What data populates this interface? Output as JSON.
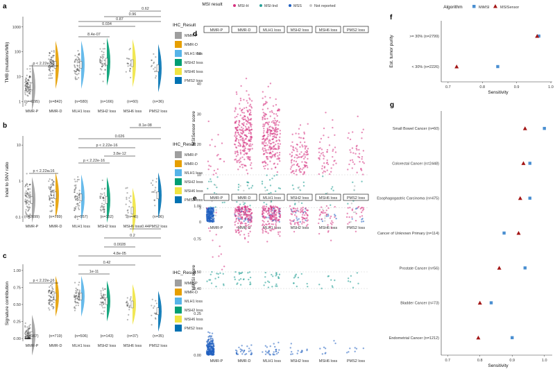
{
  "colors": {
    "mmrp": "#9e9e9e",
    "mmrd": "#e69f00",
    "mlh1": "#56b4e9",
    "msh2": "#009e73",
    "msh6": "#f0e442",
    "pms2": "#0072b2",
    "msih": "#d6317f",
    "msiind": "#2aa198",
    "mss": "#1f5fbf",
    "notrep": "#c8c8c8",
    "mimsi": "#4a8fd1",
    "msisensor": "#a31515"
  },
  "chart_data": [
    {
      "id": "a",
      "type": "raincloud",
      "ylabel": "TMB (mutations/Mb)",
      "scale": "log10",
      "ylim": [
        0.7,
        2000
      ],
      "yticks": [
        1,
        10,
        100,
        1000,
        10000
      ],
      "ytick_labels": [
        "1",
        "10",
        "100",
        "1000",
        "10000"
      ],
      "categories": [
        "MMR-P",
        "MMR-D",
        "MLH1 loss",
        "MSH2 loss",
        "MSH6 loss",
        "PMS2 loss"
      ],
      "counts": [
        "(n=4195)",
        "(n=842)",
        "(n=580)",
        "(n=166)",
        "(n=60)",
        "(n=36)"
      ],
      "medians": [
        4,
        30,
        30,
        40,
        35,
        22
      ],
      "pvalues": [
        {
          "from": 0,
          "to": 1,
          "label": "p < 2.22e-16"
        },
        {
          "from": 2,
          "to": 3,
          "label": "8.4e-07"
        },
        {
          "from": 2,
          "to": 4,
          "label": "0.034"
        },
        {
          "from": 2,
          "to": 5,
          "label": "0.87"
        },
        {
          "from": 3,
          "to": 5,
          "label": "0.96"
        },
        {
          "from": 4,
          "to": 5,
          "label": "0.62"
        }
      ],
      "legend_title": "IHC_Result",
      "legend": [
        "MMR-P",
        "MMR-D",
        "MLH1 loss",
        "MSH2 loss",
        "MSH6 loss",
        "PMS2 loss"
      ]
    },
    {
      "id": "b",
      "type": "raincloud",
      "ylabel": "Indel to SNV ratio",
      "scale": "log10",
      "ylim": [
        0.08,
        15
      ],
      "yticks": [
        0.1,
        1,
        10
      ],
      "ytick_labels": [
        "0.1",
        "1",
        "10"
      ],
      "categories": [
        "MMR-P",
        "MMR-D",
        "MLH1 loss",
        "MSH2 loss",
        "MSH6 loss",
        "PMS2 loss"
      ],
      "counts": [
        "(n=2699)",
        "(n=789)",
        "(n=557)",
        "(n=152)",
        "(n=46)",
        "(n=36)"
      ],
      "medians": [
        0.3,
        0.4,
        0.35,
        0.3,
        0.15,
        0.4
      ],
      "pvalues": [
        {
          "from": 0,
          "to": 1,
          "label": "p < 2.22e-16"
        },
        {
          "from": 2,
          "to": 3,
          "label": "p < 2.22e-16"
        },
        {
          "from": 3,
          "to": 4,
          "label": "3.8e-12"
        },
        {
          "from": 2,
          "to": 4,
          "label": "p < 2.22e-16"
        },
        {
          "from": 2,
          "to": 5,
          "label": "0.026"
        },
        {
          "from": 4,
          "to": 5,
          "label": "8.1e-08"
        }
      ],
      "legend_title": "IHC_Result",
      "legend": [
        "MMR-P",
        "MMR-D",
        "MLH1 loss",
        "MSH2 loss",
        "MSH6 loss",
        "PMS2 loss"
      ]
    },
    {
      "id": "c",
      "type": "raincloud",
      "ylabel": "Signature contribution",
      "scale": "linear",
      "ylim": [
        -0.02,
        1.05
      ],
      "yticks": [
        0,
        0.25,
        0.5,
        0.75,
        1
      ],
      "ytick_labels": [
        "0.00",
        "0.25",
        "0.50",
        "0.75",
        "1.00"
      ],
      "categories": [
        "MMR-P",
        "MMR-D",
        "MLH1 loss",
        "MSH2 loss",
        "MSH6 loss",
        "PMS2 loss"
      ],
      "counts": [
        "(n=167)",
        "(n=719)",
        "(n=506)",
        "(n=143)",
        "(n=37)",
        "(n=35)"
      ],
      "medians": [
        0.05,
        0.62,
        0.62,
        0.55,
        0.5,
        0.4
      ],
      "pvalues": [
        {
          "from": 0,
          "to": 1,
          "label": "p < 2.22e-16"
        },
        {
          "from": 2,
          "to": 3,
          "label": "1e-11"
        },
        {
          "from": 2,
          "to": 4,
          "label": "0.42"
        },
        {
          "from": 2,
          "to": 5,
          "label": "4.8e-05"
        },
        {
          "from": 3,
          "to": 4,
          "label": "0.0028"
        },
        {
          "from": 3,
          "to": 5,
          "label": "0.2"
        },
        {
          "from": 4,
          "to": 5,
          "label": "0.44"
        }
      ],
      "legend_title": "IHC_Result",
      "legend": [
        "MMR-P",
        "MMR-D",
        "MLH1 loss",
        "MSH2 loss",
        "MSH6 loss",
        "PMS2 loss"
      ]
    },
    {
      "id": "d",
      "type": "faceted-jitter",
      "ylabel": "MSISensor score",
      "scale": "broken-linear",
      "yticks": [
        0,
        3,
        10,
        20,
        30,
        40,
        50
      ],
      "ytick_labels": [
        "0",
        "3",
        "10",
        "20",
        "30",
        "40",
        "50"
      ],
      "thresholds": [
        3,
        10
      ],
      "facets": [
        "MMR-P",
        "MMR-D",
        "MLH1 loss",
        "MSH2 loss",
        "MSH6 loss",
        "PMS2 loss"
      ],
      "legend_title": "MSI result",
      "legend": [
        "MSI-H",
        "MSI-Ind",
        "MSS",
        "Not reported"
      ]
    },
    {
      "id": "e",
      "type": "faceted-jitter",
      "ylabel": "MiMSI score",
      "scale": "broken-linear",
      "yticks": [
        0,
        0.25,
        0.4,
        0.5,
        0.75,
        1
      ],
      "ytick_labels": [
        "0.00",
        "0.25",
        "0.40",
        "0.50",
        "0.75",
        "1.00"
      ],
      "thresholds": [
        0.4,
        0.5
      ],
      "facets": [
        "MMR-P",
        "MMR-D",
        "MLH1 loss",
        "MSH2 loss",
        "MSH6 loss",
        "PMS2 loss"
      ]
    },
    {
      "id": "f",
      "type": "dot",
      "ylabel": "Est. tumor purity",
      "xlabel": "Sensitivity",
      "xlim": [
        0.68,
        1.0
      ],
      "xticks": [
        0.7,
        0.8,
        0.9,
        1.0
      ],
      "xtick_labels": [
        "0.7",
        "0.8",
        "0.9",
        "1.0"
      ],
      "categories": [
        ">= 30% (n=2799)",
        "< 30% (n=2226)"
      ],
      "series": [
        {
          "name": "MiMSI",
          "values": [
            0.965,
            0.845
          ]
        },
        {
          "name": "MSISensor",
          "values": [
            0.96,
            0.725
          ]
        }
      ],
      "legend_title": "Algorithm"
    },
    {
      "id": "g",
      "type": "dot",
      "xlabel": "Sensitivity",
      "xlim": [
        0.68,
        1.02
      ],
      "xticks": [
        0.7,
        0.8,
        0.9,
        1.0
      ],
      "xtick_labels": [
        "0.7",
        "0.8",
        "0.9",
        "1.0"
      ],
      "categories": [
        "Small Bowel Cancer (n=60)",
        "Colorectal Cancer (n=2448)",
        "Esophagogastric Carcinoma (n=475)",
        "Cancer of Unknown Primary (n=114)",
        "Prostate Cancer (n=56)",
        "Bladder Cancer (n=73)",
        "Endometrial Cancer (n=1212)"
      ],
      "series": [
        {
          "name": "MiMSI",
          "values": [
            1.0,
            0.955,
            0.955,
            0.875,
            0.94,
            0.835,
            0.9
          ]
        },
        {
          "name": "MSISensor",
          "values": [
            0.94,
            0.935,
            0.925,
            0.92,
            0.86,
            0.8,
            0.795
          ]
        }
      ]
    }
  ]
}
